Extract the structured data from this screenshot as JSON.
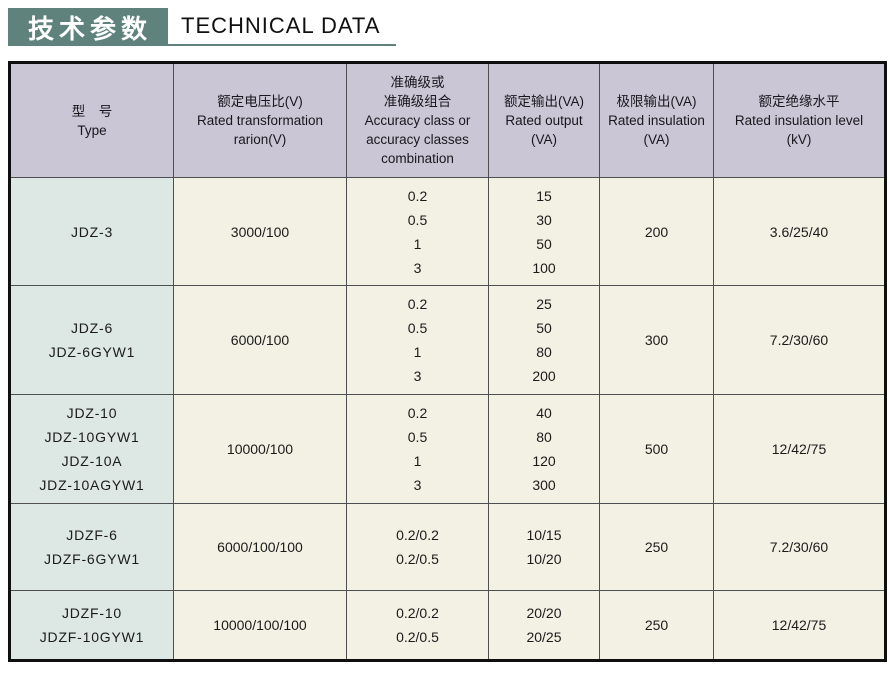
{
  "title": {
    "zh": "技术参数",
    "en": "TECHNICAL DATA"
  },
  "colors": {
    "title_block_bg": "#5f827c",
    "title_underline": "#5f827c",
    "header_row_bg": "#cbc6d6",
    "type_column_bg": "#dde8e5",
    "data_cell_bg": "#f3f1e4",
    "outer_border": "#0f0f0f",
    "inner_border": "#4d4f52"
  },
  "table": {
    "columns": [
      {
        "field": "type",
        "lines": [
          "型　号",
          "Type"
        ]
      },
      {
        "field": "voltage_ratio",
        "lines": [
          "额定电压比(V)",
          "Rated transformation",
          "rarion(V)"
        ]
      },
      {
        "field": "accuracy",
        "lines": [
          "准确级或",
          "准确级组合",
          "Accuracy class or",
          "accuracy classes",
          "combination"
        ]
      },
      {
        "field": "rated_output",
        "lines": [
          "额定输出(VA)",
          "Rated output",
          "(VA)"
        ]
      },
      {
        "field": "limit_output",
        "lines": [
          "极限输出(VA)",
          "Rated insulation",
          "(VA)"
        ]
      },
      {
        "field": "insulation_level",
        "lines": [
          "额定绝缘水平",
          "Rated insulation level",
          "(kV)"
        ]
      }
    ],
    "rows": [
      {
        "type": [
          "JDZ-3"
        ],
        "voltage_ratio": [
          "3000/100"
        ],
        "accuracy": [
          "0.2",
          "0.5",
          "1",
          "3"
        ],
        "rated_output": [
          "15",
          "30",
          "50",
          "100"
        ],
        "limit_output": [
          "200"
        ],
        "insulation_level": [
          "3.6/25/40"
        ]
      },
      {
        "type": [
          "JDZ-6",
          "JDZ-6GYW1"
        ],
        "voltage_ratio": [
          "6000/100"
        ],
        "accuracy": [
          "0.2",
          "0.5",
          "1",
          "3"
        ],
        "rated_output": [
          "25",
          "50",
          "80",
          "200"
        ],
        "limit_output": [
          "300"
        ],
        "insulation_level": [
          "7.2/30/60"
        ]
      },
      {
        "type": [
          "JDZ-10",
          "JDZ-10GYW1",
          "JDZ-10A",
          "JDZ-10AGYW1"
        ],
        "voltage_ratio": [
          "10000/100"
        ],
        "accuracy": [
          "0.2",
          "0.5",
          "1",
          "3"
        ],
        "rated_output": [
          "40",
          "80",
          "120",
          "300"
        ],
        "limit_output": [
          "500"
        ],
        "insulation_level": [
          "12/42/75"
        ]
      },
      {
        "type": [
          "JDZF-6",
          "JDZF-6GYW1"
        ],
        "voltage_ratio": [
          "6000/100/100"
        ],
        "accuracy": [
          "0.2/0.2",
          "0.2/0.5"
        ],
        "rated_output": [
          "10/15",
          "10/20"
        ],
        "limit_output": [
          "250"
        ],
        "insulation_level": [
          "7.2/30/60"
        ]
      },
      {
        "type": [
          "JDZF-10",
          "JDZF-10GYW1"
        ],
        "voltage_ratio": [
          "10000/100/100"
        ],
        "accuracy": [
          "0.2/0.2",
          "0.2/0.5"
        ],
        "rated_output": [
          "20/20",
          "20/25"
        ],
        "limit_output": [
          "250"
        ],
        "insulation_level": [
          "12/42/75"
        ]
      }
    ]
  }
}
